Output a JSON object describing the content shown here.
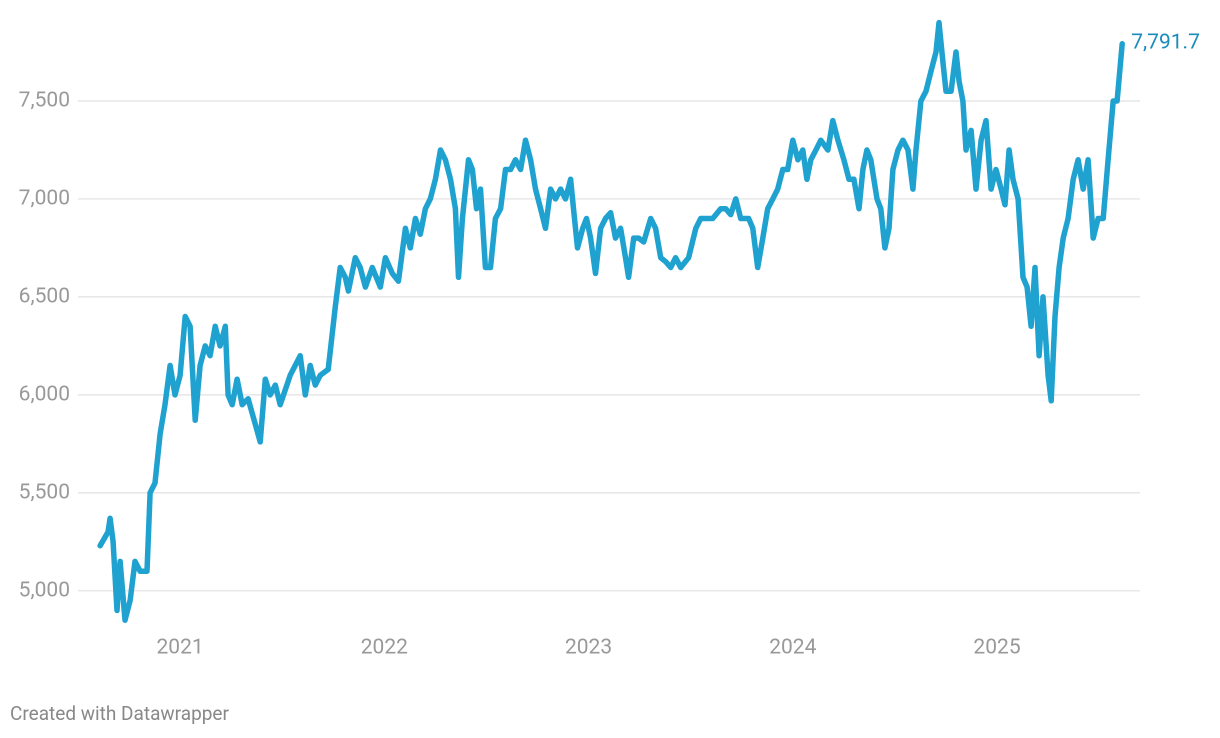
{
  "chart_data": {
    "type": "line",
    "x": [
      2020.608,
      2020.647,
      2020.657,
      2020.672,
      2020.691,
      2020.706,
      2020.73,
      2020.755,
      2020.779,
      2020.804,
      2020.838,
      2020.853,
      2020.877,
      2020.902,
      2020.926,
      2020.951,
      2020.975,
      2021.0,
      2021.025,
      2021.049,
      2021.074,
      2021.098,
      2021.123,
      2021.147,
      2021.172,
      2021.196,
      2021.221,
      2021.235,
      2021.255,
      2021.279,
      2021.304,
      2021.333,
      2021.368,
      2021.392,
      2021.417,
      2021.441,
      2021.466,
      2021.49,
      2021.539,
      2021.588,
      2021.613,
      2021.637,
      2021.662,
      2021.686,
      2021.725,
      2021.76,
      2021.784,
      2021.809,
      2021.824,
      2021.858,
      2021.882,
      2021.907,
      2021.941,
      2021.98,
      2022.005,
      2022.039,
      2022.069,
      2022.103,
      2022.127,
      2022.152,
      2022.176,
      2022.201,
      2022.225,
      2022.25,
      2022.275,
      2022.299,
      2022.324,
      2022.348,
      2022.363,
      2022.382,
      2022.412,
      2022.431,
      2022.451,
      2022.471,
      2022.495,
      2022.52,
      2022.544,
      2022.569,
      2022.593,
      2022.618,
      2022.642,
      2022.667,
      2022.691,
      2022.716,
      2022.74,
      2022.765,
      2022.789,
      2022.814,
      2022.838,
      2022.863,
      2022.887,
      2022.912,
      2022.926,
      2022.946,
      2022.971,
      2022.99,
      2023.01,
      2023.034,
      2023.059,
      2023.083,
      2023.108,
      2023.132,
      2023.157,
      2023.181,
      2023.196,
      2023.221,
      2023.245,
      2023.27,
      2023.304,
      2023.328,
      2023.353,
      2023.377,
      2023.402,
      2023.426,
      2023.451,
      2023.49,
      2023.525,
      2023.549,
      2023.574,
      2023.608,
      2023.647,
      2023.672,
      2023.696,
      2023.721,
      2023.745,
      2023.784,
      2023.804,
      2023.828,
      2023.853,
      2023.877,
      2023.902,
      2023.926,
      2023.951,
      2023.975,
      2024.0,
      2024.025,
      2024.049,
      2024.069,
      2024.088,
      2024.113,
      2024.137,
      2024.172,
      2024.196,
      2024.221,
      2024.25,
      2024.275,
      2024.299,
      2024.324,
      2024.343,
      2024.363,
      2024.382,
      2024.412,
      2024.431,
      2024.451,
      2024.471,
      2024.49,
      2024.515,
      2024.539,
      2024.564,
      2024.588,
      2024.603,
      2024.627,
      2024.652,
      2024.676,
      2024.701,
      2024.716,
      2024.735,
      2024.75,
      2024.775,
      2024.799,
      2024.814,
      2024.833,
      2024.848,
      2024.873,
      2024.897,
      2024.922,
      2024.946,
      2024.971,
      2024.995,
      2025.02,
      2025.039,
      2025.059,
      2025.078,
      2025.103,
      2025.127,
      2025.147,
      2025.167,
      2025.186,
      2025.206,
      2025.225,
      2025.25,
      2025.265,
      2025.284,
      2025.304,
      2025.324,
      2025.348,
      2025.373,
      2025.397,
      2025.422,
      2025.446,
      2025.471,
      2025.495,
      2025.52,
      2025.544,
      2025.569,
      2025.588,
      2025.613
    ],
    "series": [
      {
        "color": "#1fa2d0",
        "values": [
          5230,
          5300,
          5370,
          5250,
          4900,
          5150,
          4850,
          4950,
          5150,
          5100,
          5100,
          5500,
          5550,
          5800,
          5950,
          6150,
          6000,
          6100,
          6400,
          6350,
          5870,
          6150,
          6250,
          6200,
          6350,
          6250,
          6350,
          6000,
          5950,
          6080,
          5950,
          5980,
          5850,
          5760,
          6080,
          6000,
          6050,
          5950,
          6100,
          6200,
          6000,
          6150,
          6050,
          6100,
          6130,
          6450,
          6650,
          6600,
          6530,
          6700,
          6650,
          6550,
          6650,
          6550,
          6700,
          6620,
          6580,
          6850,
          6750,
          6900,
          6820,
          6950,
          7000,
          7100,
          7250,
          7200,
          7100,
          6950,
          6600,
          6900,
          7200,
          7150,
          6950,
          7050,
          6650,
          6650,
          6900,
          6950,
          7150,
          7150,
          7200,
          7150,
          7300,
          7200,
          7050,
          6950,
          6850,
          7050,
          7000,
          7050,
          7000,
          7100,
          6950,
          6750,
          6850,
          6900,
          6800,
          6620,
          6850,
          6900,
          6930,
          6800,
          6850,
          6700,
          6600,
          6800,
          6800,
          6780,
          6900,
          6850,
          6700,
          6680,
          6650,
          6700,
          6650,
          6700,
          6850,
          6900,
          6900,
          6900,
          6950,
          6950,
          6920,
          7000,
          6900,
          6900,
          6850,
          6650,
          6800,
          6950,
          7000,
          7050,
          7150,
          7150,
          7300,
          7200,
          7250,
          7100,
          7200,
          7250,
          7300,
          7250,
          7400,
          7300,
          7200,
          7100,
          7100,
          6950,
          7150,
          7250,
          7200,
          7000,
          6950,
          6750,
          6850,
          7150,
          7250,
          7300,
          7250,
          7050,
          7250,
          7500,
          7550,
          7650,
          7750,
          7900,
          7700,
          7550,
          7550,
          7750,
          7600,
          7500,
          7250,
          7350,
          7050,
          7300,
          7400,
          7050,
          7150,
          7050,
          6970,
          7250,
          7100,
          7000,
          6600,
          6550,
          6350,
          6650,
          6200,
          6500,
          6100,
          5970,
          6400,
          6650,
          6800,
          6900,
          7100,
          7200,
          7050,
          7200,
          6800,
          6900,
          6900,
          7200,
          7500,
          7500,
          7791.7
        ]
      }
    ],
    "end_label": "7,791.7",
    "xlim": [
      2020.5,
      2025.7
    ],
    "xticks": [
      2021,
      2022,
      2023,
      2024,
      2025
    ],
    "ylim": [
      4800,
      7950
    ],
    "yticks": [
      {
        "value": 5000,
        "label": "5,000"
      },
      {
        "value": 5500,
        "label": "5,500"
      },
      {
        "value": 6000,
        "label": "6,000"
      },
      {
        "value": 6500,
        "label": "6,500"
      },
      {
        "value": 7000,
        "label": "7,000"
      },
      {
        "value": 7500,
        "label": "7,500"
      }
    ],
    "grid": true,
    "credit": "Created with Datawrapper"
  }
}
